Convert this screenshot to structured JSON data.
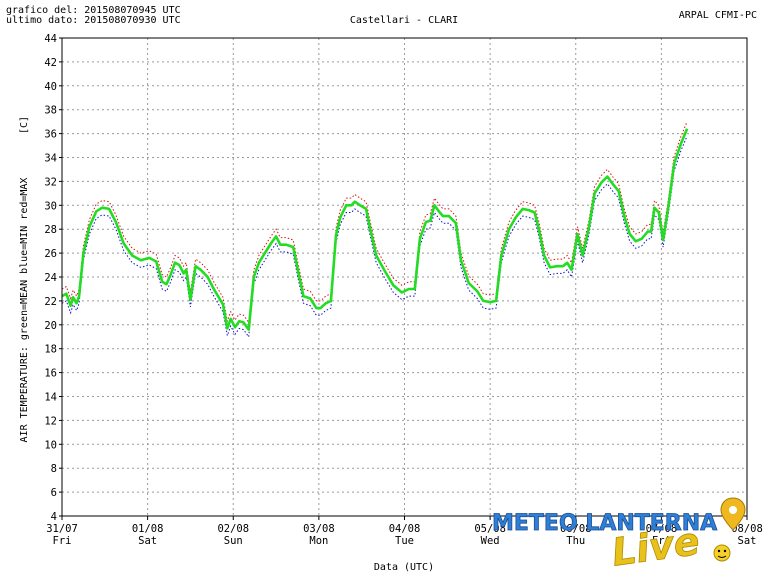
{
  "header": {
    "line1": "grafico del: 201508070945 UTC",
    "line2": "ultimo dato: 201508070930 UTC",
    "station": "Castellari - CLARI",
    "source": "ARPAL CFMI-PC"
  },
  "logo": {
    "text1": "METEO LANTERNA",
    "text2": "Live"
  },
  "colors": {
    "mean": "#22dd22",
    "min": "#1010cc",
    "max": "#dd1010",
    "grid": "#9a9a9a",
    "logo_blue": "#2f7fd6",
    "logo_yellow": "#e8c21a"
  },
  "chart_data": {
    "type": "line",
    "title": "Castellari - CLARI",
    "xlabel": "Data (UTC)",
    "ylabel": "AIR TEMPERATURE: green=MEAN  blue=MIN  red=MAX",
    "yunit": "[C]",
    "ylim": [
      4,
      44
    ],
    "yticks": [
      4,
      6,
      8,
      10,
      12,
      14,
      16,
      18,
      20,
      22,
      24,
      26,
      28,
      30,
      32,
      34,
      36,
      38,
      40,
      42,
      44
    ],
    "xlim": [
      0,
      8
    ],
    "xticks": [
      {
        "x": 0,
        "date": "31/07",
        "day": "Fri"
      },
      {
        "x": 1,
        "date": "01/08",
        "day": "Sat"
      },
      {
        "x": 2,
        "date": "02/08",
        "day": "Sun"
      },
      {
        "x": 3,
        "date": "03/08",
        "day": "Mon"
      },
      {
        "x": 4,
        "date": "04/08",
        "day": "Tue"
      },
      {
        "x": 5,
        "date": "05/08",
        "day": "Wed"
      },
      {
        "x": 6,
        "date": "06/08",
        "day": "Thu"
      },
      {
        "x": 7,
        "date": "07/08",
        "day": "Fri"
      },
      {
        "x": 8,
        "date": "08/08",
        "day": "Sat"
      }
    ],
    "grid": true,
    "series": [
      {
        "name": "MEAN",
        "color": "#22dd22",
        "points": [
          [
            0.0,
            22.4
          ],
          [
            0.05,
            22.6
          ],
          [
            0.1,
            21.6
          ],
          [
            0.13,
            22.3
          ],
          [
            0.17,
            21.8
          ],
          [
            0.2,
            22.4
          ],
          [
            0.25,
            26.0
          ],
          [
            0.32,
            28.2
          ],
          [
            0.4,
            29.5
          ],
          [
            0.47,
            29.8
          ],
          [
            0.55,
            29.7
          ],
          [
            0.63,
            28.6
          ],
          [
            0.72,
            26.8
          ],
          [
            0.82,
            25.8
          ],
          [
            0.92,
            25.4
          ],
          [
            1.02,
            25.6
          ],
          [
            1.1,
            25.3
          ],
          [
            1.17,
            23.6
          ],
          [
            1.22,
            23.4
          ],
          [
            1.27,
            24.2
          ],
          [
            1.32,
            25.2
          ],
          [
            1.37,
            25.0
          ],
          [
            1.42,
            24.3
          ],
          [
            1.45,
            24.6
          ],
          [
            1.5,
            22.1
          ],
          [
            1.56,
            24.9
          ],
          [
            1.62,
            24.6
          ],
          [
            1.7,
            24.0
          ],
          [
            1.78,
            22.9
          ],
          [
            1.88,
            21.7
          ],
          [
            1.93,
            19.7
          ],
          [
            1.97,
            20.5
          ],
          [
            2.02,
            19.8
          ],
          [
            2.07,
            20.3
          ],
          [
            2.12,
            20.2
          ],
          [
            2.18,
            19.6
          ],
          [
            2.24,
            24.0
          ],
          [
            2.3,
            25.2
          ],
          [
            2.36,
            25.9
          ],
          [
            2.44,
            26.8
          ],
          [
            2.5,
            27.4
          ],
          [
            2.55,
            26.7
          ],
          [
            2.62,
            26.7
          ],
          [
            2.7,
            26.5
          ],
          [
            2.76,
            24.4
          ],
          [
            2.82,
            22.4
          ],
          [
            2.9,
            22.2
          ],
          [
            2.97,
            21.4
          ],
          [
            3.02,
            21.4
          ],
          [
            3.08,
            21.8
          ],
          [
            3.14,
            22.0
          ],
          [
            3.2,
            27.5
          ],
          [
            3.25,
            29.0
          ],
          [
            3.32,
            30.0
          ],
          [
            3.38,
            30.0
          ],
          [
            3.42,
            30.3
          ],
          [
            3.48,
            30.0
          ],
          [
            3.55,
            29.7
          ],
          [
            3.6,
            28.0
          ],
          [
            3.67,
            25.8
          ],
          [
            3.77,
            24.5
          ],
          [
            3.87,
            23.3
          ],
          [
            3.97,
            22.7
          ],
          [
            4.05,
            23.0
          ],
          [
            4.12,
            23.0
          ],
          [
            4.18,
            27.2
          ],
          [
            4.25,
            28.6
          ],
          [
            4.3,
            28.7
          ],
          [
            4.35,
            30.0
          ],
          [
            4.4,
            29.5
          ],
          [
            4.45,
            29.1
          ],
          [
            4.52,
            29.1
          ],
          [
            4.6,
            28.5
          ],
          [
            4.66,
            25.4
          ],
          [
            4.75,
            23.5
          ],
          [
            4.85,
            22.8
          ],
          [
            4.92,
            22.0
          ],
          [
            5.0,
            21.9
          ],
          [
            5.07,
            22.0
          ],
          [
            5.13,
            25.8
          ],
          [
            5.22,
            28.0
          ],
          [
            5.3,
            29.0
          ],
          [
            5.38,
            29.7
          ],
          [
            5.45,
            29.6
          ],
          [
            5.52,
            29.4
          ],
          [
            5.57,
            28.0
          ],
          [
            5.63,
            25.8
          ],
          [
            5.7,
            24.8
          ],
          [
            5.78,
            24.9
          ],
          [
            5.85,
            24.9
          ],
          [
            5.9,
            25.2
          ],
          [
            5.95,
            24.6
          ],
          [
            6.02,
            27.6
          ],
          [
            6.08,
            25.8
          ],
          [
            6.15,
            28.0
          ],
          [
            6.22,
            31.0
          ],
          [
            6.3,
            31.9
          ],
          [
            6.37,
            32.4
          ],
          [
            6.43,
            31.8
          ],
          [
            6.5,
            31.2
          ],
          [
            6.57,
            29.0
          ],
          [
            6.63,
            27.6
          ],
          [
            6.7,
            27.0
          ],
          [
            6.77,
            27.2
          ],
          [
            6.84,
            27.8
          ],
          [
            6.88,
            27.8
          ],
          [
            6.92,
            29.8
          ],
          [
            6.97,
            29.4
          ],
          [
            7.02,
            27.1
          ],
          [
            7.08,
            29.8
          ],
          [
            7.15,
            33.5
          ],
          [
            7.23,
            35.2
          ],
          [
            7.3,
            36.4
          ]
        ],
        "offset_min": -0.6,
        "offset_max": 0.6
      },
      {
        "name": "MIN",
        "color": "#1010cc",
        "derived_from": "MEAN",
        "offset": -0.6
      },
      {
        "name": "MAX",
        "color": "#dd1010",
        "derived_from": "MEAN",
        "offset": 0.6
      }
    ]
  }
}
